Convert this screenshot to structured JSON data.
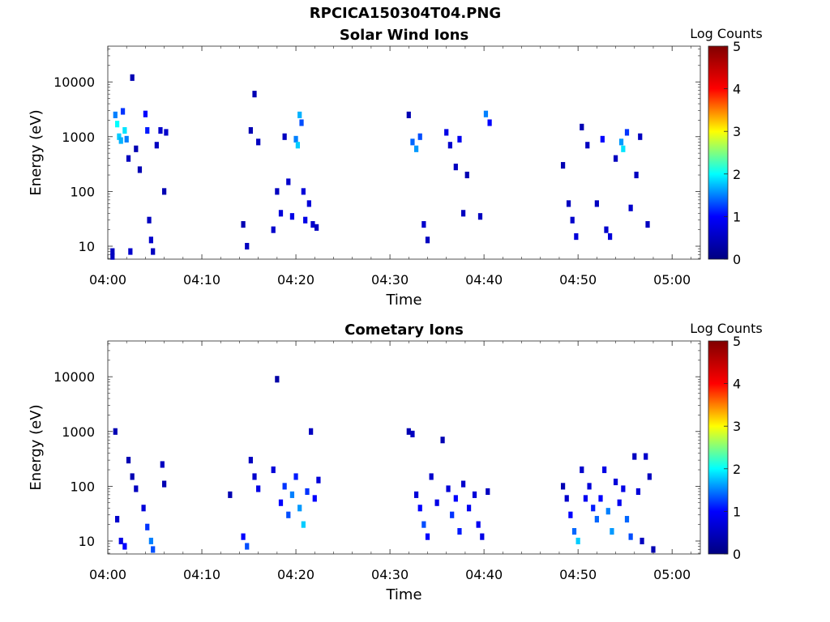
{
  "figure": {
    "suptitle": "RPCICA150304T04.PNG"
  },
  "colormap": {
    "name": "jet",
    "stops": [
      "#000080",
      "#0000ff",
      "#00ffff",
      "#ffff00",
      "#ff0000",
      "#800000"
    ]
  },
  "chart_data": [
    {
      "type": "heatmap",
      "title": "Solar Wind Ions",
      "xlabel": "Time",
      "ylabel": "Energy (eV)",
      "y_scale": "log",
      "y_range": [
        5.8,
        45000
      ],
      "x_range": [
        "04:00",
        "05:03"
      ],
      "x_ticks": [
        "04:00",
        "04:10",
        "04:20",
        "04:30",
        "04:40",
        "04:50",
        "05:00"
      ],
      "y_ticks": [
        "10",
        "100",
        "1000",
        "10000"
      ],
      "colorbar": {
        "label": "Log Counts",
        "range": [
          0,
          5
        ],
        "ticks": [
          "0",
          "1",
          "2",
          "3",
          "4",
          "5"
        ]
      },
      "cells": [
        {
          "t": 0.5,
          "e": 8,
          "c": 0.5
        },
        {
          "t": 0.5,
          "e": 6.5,
          "c": 0.5
        },
        {
          "t": 0.8,
          "e": 2500,
          "c": 1.5
        },
        {
          "t": 1.0,
          "e": 1700,
          "c": 2.0
        },
        {
          "t": 1.2,
          "e": 1000,
          "c": 1.8
        },
        {
          "t": 1.4,
          "e": 850,
          "c": 1.7
        },
        {
          "t": 1.6,
          "e": 2900,
          "c": 1.2
        },
        {
          "t": 1.8,
          "e": 1300,
          "c": 1.9
        },
        {
          "t": 2.0,
          "e": 900,
          "c": 1.5
        },
        {
          "t": 2.2,
          "e": 400,
          "c": 0.5
        },
        {
          "t": 2.4,
          "e": 8,
          "c": 0.6
        },
        {
          "t": 2.6,
          "e": 12000,
          "c": 0.4
        },
        {
          "t": 3.0,
          "e": 600,
          "c": 0.4
        },
        {
          "t": 3.4,
          "e": 250,
          "c": 0.4
        },
        {
          "t": 4.0,
          "e": 2600,
          "c": 1.0
        },
        {
          "t": 4.2,
          "e": 1300,
          "c": 1.1
        },
        {
          "t": 4.4,
          "e": 30,
          "c": 0.5
        },
        {
          "t": 4.6,
          "e": 13,
          "c": 0.6
        },
        {
          "t": 4.8,
          "e": 8,
          "c": 0.5
        },
        {
          "t": 5.2,
          "e": 700,
          "c": 0.5
        },
        {
          "t": 5.6,
          "e": 1300,
          "c": 0.6
        },
        {
          "t": 6.0,
          "e": 100,
          "c": 0.4
        },
        {
          "t": 6.2,
          "e": 1200,
          "c": 0.6
        },
        {
          "t": 14.4,
          "e": 25,
          "c": 0.4
        },
        {
          "t": 14.8,
          "e": 10,
          "c": 0.5
        },
        {
          "t": 15.2,
          "e": 1300,
          "c": 0.4
        },
        {
          "t": 15.6,
          "e": 6000,
          "c": 0.4
        },
        {
          "t": 16.0,
          "e": 800,
          "c": 0.5
        },
        {
          "t": 17.6,
          "e": 20,
          "c": 0.6
        },
        {
          "t": 18.0,
          "e": 100,
          "c": 0.5
        },
        {
          "t": 18.4,
          "e": 40,
          "c": 0.7
        },
        {
          "t": 18.8,
          "e": 1000,
          "c": 0.5
        },
        {
          "t": 19.2,
          "e": 150,
          "c": 0.6
        },
        {
          "t": 19.6,
          "e": 35,
          "c": 0.8
        },
        {
          "t": 20.0,
          "e": 900,
          "c": 1.5
        },
        {
          "t": 20.2,
          "e": 700,
          "c": 1.8
        },
        {
          "t": 20.4,
          "e": 2500,
          "c": 1.7
        },
        {
          "t": 20.6,
          "e": 1800,
          "c": 1.3
        },
        {
          "t": 20.8,
          "e": 100,
          "c": 0.7
        },
        {
          "t": 21.0,
          "e": 30,
          "c": 0.8
        },
        {
          "t": 21.4,
          "e": 60,
          "c": 0.7
        },
        {
          "t": 21.8,
          "e": 25,
          "c": 0.6
        },
        {
          "t": 22.2,
          "e": 22,
          "c": 0.5
        },
        {
          "t": 32.0,
          "e": 2500,
          "c": 0.4
        },
        {
          "t": 32.4,
          "e": 800,
          "c": 1.4
        },
        {
          "t": 32.8,
          "e": 600,
          "c": 1.6
        },
        {
          "t": 33.2,
          "e": 1000,
          "c": 1.3
        },
        {
          "t": 33.6,
          "e": 25,
          "c": 0.6
        },
        {
          "t": 34.0,
          "e": 13,
          "c": 0.5
        },
        {
          "t": 36.0,
          "e": 1200,
          "c": 0.8
        },
        {
          "t": 36.4,
          "e": 700,
          "c": 0.6
        },
        {
          "t": 37.0,
          "e": 280,
          "c": 0.5
        },
        {
          "t": 37.4,
          "e": 900,
          "c": 0.9
        },
        {
          "t": 37.8,
          "e": 40,
          "c": 0.5
        },
        {
          "t": 38.2,
          "e": 200,
          "c": 0.4
        },
        {
          "t": 39.6,
          "e": 35,
          "c": 0.5
        },
        {
          "t": 40.2,
          "e": 2600,
          "c": 1.5
        },
        {
          "t": 40.6,
          "e": 1800,
          "c": 1.0
        },
        {
          "t": 48.4,
          "e": 300,
          "c": 0.4
        },
        {
          "t": 49.0,
          "e": 60,
          "c": 0.5
        },
        {
          "t": 49.4,
          "e": 30,
          "c": 0.6
        },
        {
          "t": 49.8,
          "e": 15,
          "c": 0.7
        },
        {
          "t": 50.4,
          "e": 1500,
          "c": 0.4
        },
        {
          "t": 51.0,
          "e": 700,
          "c": 0.5
        },
        {
          "t": 52.0,
          "e": 60,
          "c": 0.5
        },
        {
          "t": 52.6,
          "e": 900,
          "c": 1.0
        },
        {
          "t": 53.0,
          "e": 20,
          "c": 0.6
        },
        {
          "t": 53.4,
          "e": 15,
          "c": 0.7
        },
        {
          "t": 54.0,
          "e": 400,
          "c": 0.5
        },
        {
          "t": 54.6,
          "e": 800,
          "c": 1.6
        },
        {
          "t": 54.8,
          "e": 600,
          "c": 1.9
        },
        {
          "t": 55.2,
          "e": 1200,
          "c": 1.2
        },
        {
          "t": 55.6,
          "e": 50,
          "c": 0.6
        },
        {
          "t": 56.2,
          "e": 200,
          "c": 0.5
        },
        {
          "t": 56.6,
          "e": 1000,
          "c": 0.5
        },
        {
          "t": 57.4,
          "e": 25,
          "c": 0.5
        }
      ]
    },
    {
      "type": "heatmap",
      "title": "Cometary Ions",
      "xlabel": "Time",
      "ylabel": "Energy (eV)",
      "y_scale": "log",
      "y_range": [
        5.8,
        45000
      ],
      "x_range": [
        "04:00",
        "05:03"
      ],
      "x_ticks": [
        "04:00",
        "04:10",
        "04:20",
        "04:30",
        "04:40",
        "04:50",
        "05:00"
      ],
      "y_ticks": [
        "10",
        "100",
        "1000",
        "10000"
      ],
      "colorbar": {
        "label": "Log Counts",
        "range": [
          0,
          5
        ],
        "ticks": [
          "0",
          "1",
          "2",
          "3",
          "4",
          "5"
        ]
      },
      "cells": [
        {
          "t": 0.8,
          "e": 1000,
          "c": 0.4
        },
        {
          "t": 1.0,
          "e": 25,
          "c": 0.6
        },
        {
          "t": 1.4,
          "e": 10,
          "c": 0.8
        },
        {
          "t": 1.8,
          "e": 8,
          "c": 1.0
        },
        {
          "t": 2.2,
          "e": 300,
          "c": 0.4
        },
        {
          "t": 2.6,
          "e": 150,
          "c": 0.4
        },
        {
          "t": 3.0,
          "e": 90,
          "c": 0.5
        },
        {
          "t": 3.8,
          "e": 40,
          "c": 0.7
        },
        {
          "t": 4.2,
          "e": 18,
          "c": 1.2
        },
        {
          "t": 4.6,
          "e": 10,
          "c": 1.5
        },
        {
          "t": 4.8,
          "e": 7,
          "c": 1.3
        },
        {
          "t": 5.8,
          "e": 250,
          "c": 0.5
        },
        {
          "t": 6.0,
          "e": 110,
          "c": 0.4
        },
        {
          "t": 13.0,
          "e": 70,
          "c": 0.4
        },
        {
          "t": 14.4,
          "e": 12,
          "c": 1.0
        },
        {
          "t": 14.8,
          "e": 8,
          "c": 1.3
        },
        {
          "t": 15.2,
          "e": 300,
          "c": 0.5
        },
        {
          "t": 15.6,
          "e": 150,
          "c": 0.6
        },
        {
          "t": 16.0,
          "e": 90,
          "c": 0.8
        },
        {
          "t": 17.6,
          "e": 200,
          "c": 0.7
        },
        {
          "t": 18.0,
          "e": 9000,
          "c": 0.3
        },
        {
          "t": 18.4,
          "e": 50,
          "c": 1.0
        },
        {
          "t": 18.8,
          "e": 100,
          "c": 1.2
        },
        {
          "t": 19.2,
          "e": 30,
          "c": 1.3
        },
        {
          "t": 19.6,
          "e": 70,
          "c": 1.5
        },
        {
          "t": 20.0,
          "e": 150,
          "c": 1.1
        },
        {
          "t": 20.4,
          "e": 40,
          "c": 1.6
        },
        {
          "t": 20.8,
          "e": 20,
          "c": 1.8
        },
        {
          "t": 21.2,
          "e": 80,
          "c": 1.2
        },
        {
          "t": 21.6,
          "e": 1000,
          "c": 0.5
        },
        {
          "t": 22.0,
          "e": 60,
          "c": 1.0
        },
        {
          "t": 22.4,
          "e": 130,
          "c": 0.7
        },
        {
          "t": 32.0,
          "e": 1000,
          "c": 0.4
        },
        {
          "t": 32.4,
          "e": 900,
          "c": 0.5
        },
        {
          "t": 32.8,
          "e": 70,
          "c": 0.7
        },
        {
          "t": 33.2,
          "e": 40,
          "c": 1.0
        },
        {
          "t": 33.6,
          "e": 20,
          "c": 1.3
        },
        {
          "t": 34.0,
          "e": 12,
          "c": 1.0
        },
        {
          "t": 34.4,
          "e": 150,
          "c": 0.6
        },
        {
          "t": 35.0,
          "e": 50,
          "c": 0.8
        },
        {
          "t": 35.6,
          "e": 700,
          "c": 0.4
        },
        {
          "t": 36.2,
          "e": 90,
          "c": 0.7
        },
        {
          "t": 36.6,
          "e": 30,
          "c": 1.2
        },
        {
          "t": 37.0,
          "e": 60,
          "c": 1.0
        },
        {
          "t": 37.4,
          "e": 15,
          "c": 1.1
        },
        {
          "t": 37.8,
          "e": 110,
          "c": 0.6
        },
        {
          "t": 38.4,
          "e": 40,
          "c": 0.9
        },
        {
          "t": 39.0,
          "e": 70,
          "c": 0.7
        },
        {
          "t": 39.4,
          "e": 20,
          "c": 0.9
        },
        {
          "t": 39.8,
          "e": 12,
          "c": 0.8
        },
        {
          "t": 40.4,
          "e": 80,
          "c": 0.5
        },
        {
          "t": 48.4,
          "e": 100,
          "c": 0.4
        },
        {
          "t": 48.8,
          "e": 60,
          "c": 0.6
        },
        {
          "t": 49.2,
          "e": 30,
          "c": 1.0
        },
        {
          "t": 49.6,
          "e": 15,
          "c": 1.4
        },
        {
          "t": 50.0,
          "e": 10,
          "c": 1.8
        },
        {
          "t": 50.4,
          "e": 200,
          "c": 0.6
        },
        {
          "t": 50.8,
          "e": 60,
          "c": 0.9
        },
        {
          "t": 51.2,
          "e": 100,
          "c": 0.7
        },
        {
          "t": 51.6,
          "e": 40,
          "c": 1.1
        },
        {
          "t": 52.0,
          "e": 25,
          "c": 1.4
        },
        {
          "t": 52.4,
          "e": 60,
          "c": 1.0
        },
        {
          "t": 52.8,
          "e": 200,
          "c": 0.8
        },
        {
          "t": 53.2,
          "e": 35,
          "c": 1.5
        },
        {
          "t": 53.6,
          "e": 15,
          "c": 1.6
        },
        {
          "t": 54.0,
          "e": 120,
          "c": 0.7
        },
        {
          "t": 54.4,
          "e": 50,
          "c": 0.9
        },
        {
          "t": 54.8,
          "e": 90,
          "c": 0.8
        },
        {
          "t": 55.2,
          "e": 25,
          "c": 1.4
        },
        {
          "t": 55.6,
          "e": 12,
          "c": 1.3
        },
        {
          "t": 56.0,
          "e": 350,
          "c": 0.5
        },
        {
          "t": 56.4,
          "e": 80,
          "c": 0.7
        },
        {
          "t": 56.8,
          "e": 10,
          "c": 0.5
        },
        {
          "t": 57.2,
          "e": 350,
          "c": 0.6
        },
        {
          "t": 57.6,
          "e": 150,
          "c": 0.5
        },
        {
          "t": 58.0,
          "e": 7,
          "c": 0.4
        }
      ]
    }
  ]
}
